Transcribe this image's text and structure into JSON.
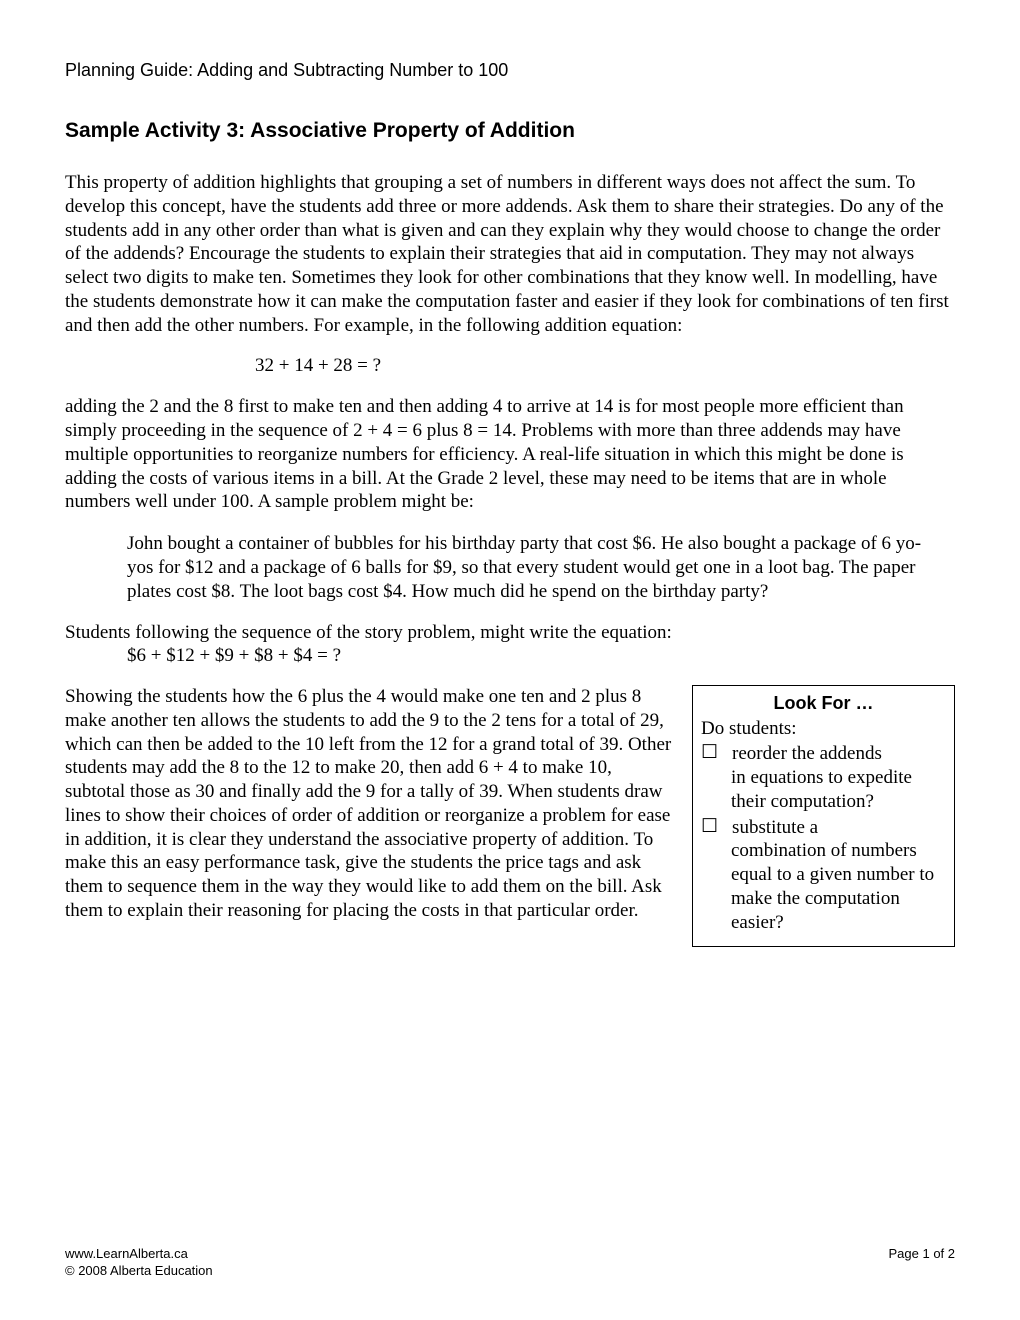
{
  "header": {
    "guide_title": "Planning Guide: Adding and Subtracting Number to 100"
  },
  "section": {
    "title": "Sample Activity 3: Associative Property of Addition"
  },
  "paragraphs": {
    "intro": "This property of addition highlights that grouping a set of numbers in different ways does not affect the sum. To develop this concept, have the students add three or more addends. Ask them to share their strategies. Do any of the students add in any other order than what is given and can they explain why they would choose to change the order of the addends? Encourage the students to explain their strategies that aid in computation. They may not always select two digits to make ten. Sometimes they look for other combinations that they know well. In modelling, have the students demonstrate how it can make the computation faster and easier if they look for combinations of ten first and then add the other numbers. For example, in the following addition equation:",
    "equation1": "32 + 14 + 28 = ?",
    "para2": "adding the 2 and the 8 first to make ten and then adding 4 to arrive at 14 is for most people more efficient than simply proceeding in the sequence of 2 + 4 = 6 plus 8 = 14. Problems with more than three addends may have multiple opportunities to reorganize numbers for efficiency. A real-life situation in which this might be done is adding the costs of various items in a bill. At the Grade 2 level, these may need to be items that are in whole numbers well under 100. A sample problem might be:",
    "problem": "John bought a container of bubbles for his birthday party that cost $6. He also bought a package of 6 yo-yos for $12 and a package of 6 balls for $9, so that every student would get one in a loot bag. The paper plates cost $8. The loot bags cost $4. How much did he spend on the birthday party?",
    "para3": "Students following the sequence of the story problem, might write the equation:",
    "equation2": "$6 + $12 + $9 + $8 + $4 = ?",
    "para4": "Showing the students how the 6 plus the 4 would make one ten and 2 plus 8 make another ten allows the students to add the 9 to the 2 tens for a total of 29, which can then be added to the 10 left from the 12 for a grand total of 39. Other students may add the 8 to the 12 to make 20, then add 6 + 4 to make 10, subtotal those as 30 and finally add the 9 for a tally of 39. When students draw lines to show their choices of order of addition or reorganize a problem for ease in addition, it is clear they understand the associative property of addition. To make this an easy performance task, give the students the price tags and ask them to sequence them in the way they would like to add them on the bill. Ask them to explain their reasoning for placing the costs in that particular order."
  },
  "lookFor": {
    "title": "Look For …",
    "intro": "Do students:",
    "items": [
      {
        "first_line": "reorder the addends",
        "continuation": "in equations to expedite their computation?"
      },
      {
        "first_line": "substitute a",
        "continuation": "combination of numbers equal to a given number to make the computation easier?"
      }
    ]
  },
  "footer": {
    "url": "www.LearnAlberta.ca",
    "copyright": "© 2008 Alberta Education",
    "page": "Page 1 of 2"
  }
}
